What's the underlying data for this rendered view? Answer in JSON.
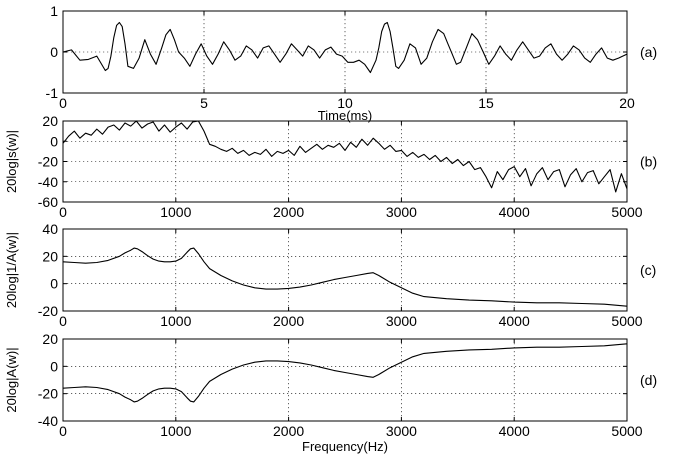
{
  "chart_data": [
    {
      "type": "line",
      "panel_tag": "(a)",
      "xlabel": "Time(ms)",
      "ylabel": "",
      "xlim": [
        0,
        20
      ],
      "ylim": [
        -1,
        1
      ],
      "xticks": [
        0,
        5,
        10,
        15,
        20
      ],
      "yticks": [
        -1,
        0,
        1
      ],
      "grid": true,
      "series": [
        {
          "x": [
            0,
            0.3,
            0.6,
            0.9,
            1.2,
            1.5,
            1.6,
            1.7,
            1.8,
            1.9,
            2.0,
            2.1,
            2.2,
            2.3,
            2.5,
            2.7,
            2.9,
            3.1,
            3.3,
            3.5,
            3.65,
            3.8,
            3.95,
            4.1,
            4.3,
            4.5,
            4.7,
            4.9,
            5.1,
            5.3,
            5.5,
            5.7,
            5.9,
            6.1,
            6.3,
            6.5,
            6.7,
            6.9,
            7.1,
            7.3,
            7.5,
            7.7,
            7.9,
            8.1,
            8.3,
            8.5,
            8.7,
            8.9,
            9.1,
            9.3,
            9.5,
            9.7,
            9.9,
            10.1,
            10.3,
            10.5,
            10.7,
            10.9,
            11.1,
            11.2,
            11.3,
            11.4,
            11.5,
            11.6,
            11.7,
            11.8,
            11.9,
            12.1,
            12.3,
            12.5,
            12.7,
            12.9,
            13.1,
            13.3,
            13.5,
            13.65,
            13.8,
            13.95,
            14.1,
            14.3,
            14.5,
            14.7,
            14.9,
            15.1,
            15.3,
            15.5,
            15.7,
            15.9,
            16.1,
            16.3,
            16.5,
            16.7,
            16.9,
            17.1,
            17.3,
            17.5,
            17.7,
            17.9,
            18.1,
            18.3,
            18.5,
            18.7,
            18.9,
            19.1,
            19.3,
            19.5,
            19.7,
            20.0
          ],
          "y": [
            0,
            0.05,
            -0.2,
            -0.18,
            -0.1,
            -0.45,
            -0.4,
            -0.1,
            0.35,
            0.65,
            0.72,
            0.62,
            0.2,
            -0.35,
            -0.4,
            -0.15,
            0.3,
            -0.05,
            -0.3,
            0.1,
            0.42,
            0.55,
            0.3,
            0,
            -0.15,
            -0.35,
            -0.05,
            0.2,
            -0.1,
            -0.3,
            -0.05,
            0.25,
            0.05,
            -0.2,
            -0.1,
            0.15,
            0.05,
            -0.15,
            0.1,
            0.15,
            -0.05,
            -0.25,
            -0.05,
            0.2,
            0.05,
            -0.1,
            0.15,
            0.05,
            -0.15,
            0.05,
            0.12,
            -0.05,
            -0.1,
            -0.25,
            -0.25,
            -0.2,
            -0.3,
            -0.5,
            -0.2,
            0.1,
            0.5,
            0.68,
            0.72,
            0.5,
            0.1,
            -0.35,
            -0.4,
            -0.2,
            0.2,
            0.1,
            -0.3,
            -0.15,
            0.25,
            0.55,
            0.45,
            0.2,
            -0.05,
            -0.3,
            -0.25,
            0.1,
            0.45,
            0.3,
            0,
            -0.3,
            -0.1,
            0.15,
            -0.05,
            -0.2,
            0.05,
            0.25,
            0.05,
            -0.15,
            -0.1,
            0.1,
            0.2,
            -0.05,
            -0.2,
            -0.05,
            0.15,
            0.05,
            -0.15,
            -0.25,
            -0.05,
            0.1,
            -0.15,
            -0.2,
            -0.15,
            -0.05
          ]
        }
      ]
    },
    {
      "type": "line",
      "panel_tag": "(b)",
      "xlabel": "",
      "ylabel": "20log|s(w)|",
      "xlim": [
        0,
        5000
      ],
      "ylim": [
        -60,
        20
      ],
      "xticks": [
        0,
        1000,
        2000,
        3000,
        4000,
        5000
      ],
      "yticks": [
        -60,
        -40,
        -20,
        0,
        20
      ],
      "grid": true,
      "series": [
        {
          "x": [
            0,
            50,
            100,
            150,
            200,
            250,
            300,
            350,
            400,
            450,
            500,
            550,
            600,
            650,
            700,
            750,
            800,
            850,
            900,
            950,
            1000,
            1050,
            1100,
            1150,
            1200,
            1250,
            1300,
            1350,
            1400,
            1450,
            1500,
            1550,
            1600,
            1650,
            1700,
            1750,
            1800,
            1850,
            1900,
            1950,
            2000,
            2050,
            2100,
            2150,
            2200,
            2250,
            2300,
            2350,
            2400,
            2450,
            2500,
            2550,
            2600,
            2650,
            2700,
            2750,
            2800,
            2850,
            2900,
            2950,
            3000,
            3050,
            3100,
            3150,
            3200,
            3250,
            3300,
            3350,
            3400,
            3450,
            3500,
            3550,
            3600,
            3650,
            3700,
            3750,
            3800,
            3850,
            3900,
            3950,
            4000,
            4050,
            4100,
            4150,
            4200,
            4250,
            4300,
            4350,
            4400,
            4450,
            4500,
            4550,
            4600,
            4650,
            4700,
            4750,
            4800,
            4850,
            4900,
            4950,
            5000
          ],
          "y": [
            -2,
            5,
            10,
            3,
            8,
            6,
            12,
            7,
            14,
            16,
            11,
            18,
            15,
            20,
            13,
            17,
            19,
            10,
            16,
            9,
            14,
            18,
            12,
            19,
            20,
            10,
            -3,
            -5,
            -8,
            -10,
            -7,
            -12,
            -9,
            -14,
            -11,
            -13,
            -8,
            -15,
            -10,
            -12,
            -9,
            -14,
            -5,
            -11,
            -7,
            -3,
            -8,
            -4,
            -6,
            -2,
            -9,
            -1,
            -6,
            2,
            -4,
            3,
            -2,
            -8,
            -4,
            -10,
            -9,
            -15,
            -11,
            -16,
            -13,
            -18,
            -14,
            -20,
            -16,
            -22,
            -18,
            -24,
            -20,
            -28,
            -26,
            -35,
            -46,
            -30,
            -38,
            -28,
            -25,
            -35,
            -27,
            -44,
            -32,
            -26,
            -38,
            -30,
            -28,
            -45,
            -33,
            -27,
            -40,
            -31,
            -29,
            -42,
            -35,
            -28,
            -50,
            -32,
            -47
          ]
        }
      ]
    },
    {
      "type": "line",
      "panel_tag": "(c)",
      "xlabel": "",
      "ylabel": "20log|1/A(w)|",
      "xlim": [
        0,
        5000
      ],
      "ylim": [
        -20,
        40
      ],
      "xticks": [
        0,
        1000,
        2000,
        3000,
        4000,
        5000
      ],
      "yticks": [
        -20,
        0,
        20,
        40
      ],
      "grid": true,
      "series": [
        {
          "x": [
            0,
            100,
            200,
            300,
            400,
            500,
            550,
            600,
            630,
            660,
            700,
            750,
            800,
            850,
            900,
            950,
            1000,
            1050,
            1100,
            1130,
            1160,
            1200,
            1250,
            1300,
            1400,
            1500,
            1600,
            1700,
            1800,
            1900,
            2000,
            2100,
            2200,
            2300,
            2400,
            2500,
            2600,
            2700,
            2750,
            2800,
            2900,
            3000,
            3100,
            3200,
            3400,
            3600,
            3800,
            4000,
            4200,
            4400,
            4600,
            4800,
            5000
          ],
          "y": [
            16,
            15.5,
            15,
            15.5,
            17,
            20,
            22.5,
            24.5,
            26,
            25.5,
            23.5,
            20.5,
            18,
            16.5,
            16,
            16,
            16.5,
            18.5,
            23,
            25.5,
            26,
            22,
            16,
            11,
            6,
            2,
            -1,
            -3,
            -4,
            -4,
            -3.5,
            -2.5,
            -1,
            1,
            3,
            4.5,
            6,
            7.5,
            8,
            6,
            1,
            -3,
            -7,
            -9.5,
            -11,
            -12,
            -12.5,
            -13.5,
            -14,
            -14,
            -14.5,
            -15,
            -16.5
          ]
        }
      ]
    },
    {
      "type": "line",
      "panel_tag": "(d)",
      "xlabel": "Frequency(Hz)",
      "ylabel": "20log|A(w)|",
      "xlim": [
        0,
        5000
      ],
      "ylim": [
        -40,
        20
      ],
      "xticks": [
        0,
        1000,
        2000,
        3000,
        4000,
        5000
      ],
      "yticks": [
        -40,
        -20,
        0,
        20
      ],
      "grid": true,
      "series": [
        {
          "x": [
            0,
            100,
            200,
            300,
            400,
            500,
            550,
            600,
            630,
            660,
            700,
            750,
            800,
            850,
            900,
            950,
            1000,
            1050,
            1100,
            1130,
            1160,
            1200,
            1250,
            1300,
            1400,
            1500,
            1600,
            1700,
            1800,
            1900,
            2000,
            2100,
            2200,
            2300,
            2400,
            2500,
            2600,
            2700,
            2750,
            2800,
            2900,
            3000,
            3100,
            3200,
            3400,
            3600,
            3800,
            4000,
            4200,
            4400,
            4600,
            4800,
            5000
          ],
          "y": [
            -16,
            -15.5,
            -15,
            -15.5,
            -17,
            -20,
            -22.5,
            -24.5,
            -26,
            -25.5,
            -23.5,
            -20.5,
            -18,
            -16.5,
            -16,
            -16,
            -16.5,
            -18.5,
            -23,
            -25.5,
            -26,
            -22,
            -16,
            -11,
            -6,
            -2,
            1,
            3,
            4,
            4,
            3.5,
            2.5,
            1,
            -1,
            -3,
            -4.5,
            -6,
            -7.5,
            -8,
            -6,
            -1,
            3,
            7,
            9.5,
            11,
            12,
            12.5,
            13.5,
            14,
            14,
            14.5,
            15,
            16.5
          ]
        }
      ]
    }
  ]
}
